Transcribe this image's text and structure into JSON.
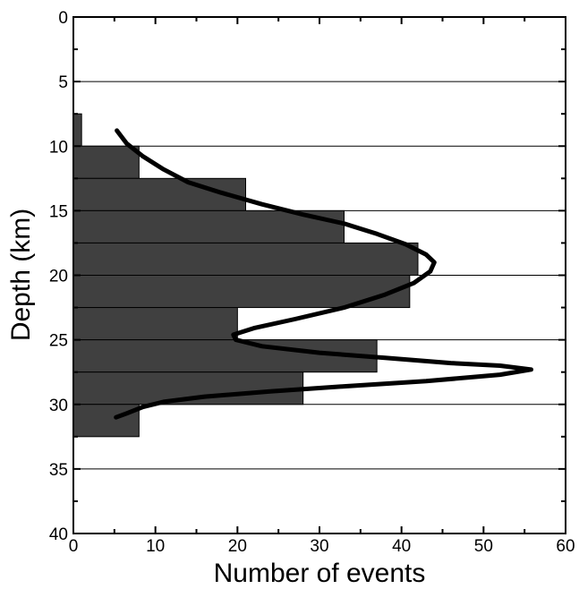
{
  "chart_data": {
    "type": "bar",
    "orientation": "horizontal",
    "title": "",
    "xlabel": "Number of events",
    "ylabel": "Depth (km)",
    "xlim": [
      0,
      60
    ],
    "ylim": [
      0,
      40
    ],
    "y_inverted": true,
    "grid": "horizontal",
    "x_ticks": [
      "0",
      "10",
      "20",
      "30",
      "40",
      "50",
      "60"
    ],
    "y_ticks": [
      "0",
      "5",
      "10",
      "15",
      "20",
      "25",
      "30",
      "35",
      "40"
    ],
    "bin_width_km": 2.5,
    "bins": [
      {
        "depth_from": 7.5,
        "depth_to": 10,
        "count": 1
      },
      {
        "depth_from": 10,
        "depth_to": 12.5,
        "count": 8
      },
      {
        "depth_from": 12.5,
        "depth_to": 15,
        "count": 21
      },
      {
        "depth_from": 15,
        "depth_to": 17.5,
        "count": 33
      },
      {
        "depth_from": 17.5,
        "depth_to": 20,
        "count": 42
      },
      {
        "depth_from": 20,
        "depth_to": 22.5,
        "count": 41
      },
      {
        "depth_from": 22.5,
        "depth_to": 25,
        "count": 20
      },
      {
        "depth_from": 25,
        "depth_to": 27.5,
        "count": 37
      },
      {
        "depth_from": 27.5,
        "depth_to": 30,
        "count": 28
      },
      {
        "depth_from": 30,
        "depth_to": 32.5,
        "count": 8
      }
    ],
    "fit_curve": {
      "points": [
        [
          5.3,
          8.8
        ],
        [
          6.5,
          9.8
        ],
        [
          8.5,
          10.8
        ],
        [
          11,
          11.8
        ],
        [
          14,
          12.8
        ],
        [
          18,
          13.6
        ],
        [
          23,
          14.5
        ],
        [
          28,
          15.3
        ],
        [
          33,
          16.0
        ],
        [
          37,
          16.8
        ],
        [
          40.5,
          17.6
        ],
        [
          43,
          18.4
        ],
        [
          44,
          19.0
        ],
        [
          43.5,
          19.7
        ],
        [
          41.5,
          20.6
        ],
        [
          38,
          21.5
        ],
        [
          33,
          22.5
        ],
        [
          27,
          23.4
        ],
        [
          22,
          24.1
        ],
        [
          19.5,
          24.6
        ],
        [
          19.8,
          25.0
        ],
        [
          23,
          25.5
        ],
        [
          30,
          26.0
        ],
        [
          38,
          26.4
        ],
        [
          46,
          26.8
        ],
        [
          52,
          27.0
        ],
        [
          55.8,
          27.3
        ],
        [
          52,
          27.7
        ],
        [
          43,
          28.2
        ],
        [
          33,
          28.6
        ],
        [
          24,
          29.0
        ],
        [
          16,
          29.4
        ],
        [
          11,
          29.8
        ],
        [
          8.5,
          30.2
        ],
        [
          6.5,
          30.7
        ],
        [
          5.2,
          31.0
        ]
      ]
    }
  }
}
